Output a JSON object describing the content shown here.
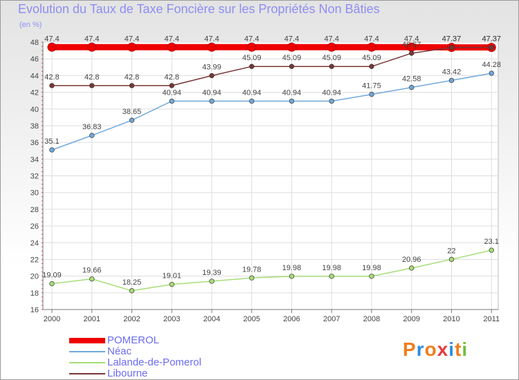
{
  "title": "Evolution du Taux de Taxe Foncière sur les Propriétés Non Bâties",
  "unit_label": "(en %)",
  "logo": {
    "text": "Proxiti",
    "letter_colors": [
      "#f07d1a",
      "#2b8de0",
      "#f07d1a",
      "#e83c3c",
      "#2b8de0",
      "#f07d1a",
      "#6fbf3a"
    ]
  },
  "chart_data": {
    "type": "line",
    "x": [
      "2000",
      "2001",
      "2002",
      "2003",
      "2004",
      "2005",
      "2006",
      "2007",
      "2008",
      "2009",
      "2010",
      "2011"
    ],
    "ylim": [
      16,
      48
    ],
    "yticks": [
      16,
      18,
      20,
      22,
      24,
      26,
      28,
      30,
      32,
      34,
      36,
      38,
      40,
      42,
      44,
      46,
      48
    ],
    "grid": true,
    "legend_position": "bottom-left",
    "series": [
      {
        "name": "POMEROL",
        "color": "#ee0000",
        "values": [
          47.4,
          47.4,
          47.4,
          47.4,
          47.4,
          47.4,
          47.4,
          47.4,
          47.4,
          47.4,
          47.37,
          47.37
        ],
        "labels": [
          "47.4",
          "47.4",
          "47.4",
          "47.4",
          "47.4",
          "47.4",
          "47.4",
          "47.4",
          "47.4",
          "47.4",
          "47.37",
          "47.37"
        ]
      },
      {
        "name": "Néac",
        "color": "#6fa8dc",
        "values": [
          35.1,
          36.83,
          38.65,
          40.94,
          40.94,
          40.94,
          40.94,
          40.94,
          41.75,
          42.58,
          43.42,
          44.28
        ],
        "labels": [
          "35.1",
          "36.83",
          "38.65",
          "40.94",
          "40.94",
          "40.94",
          "40.94",
          "40.94",
          "41.75",
          "42.58",
          "43.42",
          "44.28"
        ]
      },
      {
        "name": "Lalande-de-Pomerol",
        "color": "#a6dd77",
        "values": [
          19.09,
          19.66,
          18.25,
          19.01,
          19.39,
          19.78,
          19.98,
          19.98,
          19.98,
          20.96,
          22,
          23.1
        ],
        "labels": [
          "19.09",
          "19.66",
          "18.25",
          "19.01",
          "19.39",
          "19.78",
          "19.98",
          "19.98",
          "19.98",
          "20.96",
          "22",
          "23.1"
        ]
      },
      {
        "name": "Libourne",
        "color": "#7a3636",
        "values": [
          42.8,
          42.8,
          42.8,
          42.8,
          43.99,
          45.09,
          45.09,
          45.09,
          45.09,
          46.67,
          47.37,
          47.37
        ],
        "labels": [
          "42.8",
          "42.8",
          "42.8",
          "42.8",
          "43.99",
          "45.09",
          "45.09",
          "45.09",
          "45.09",
          "46.67",
          "47.37",
          "47.37"
        ]
      }
    ]
  }
}
